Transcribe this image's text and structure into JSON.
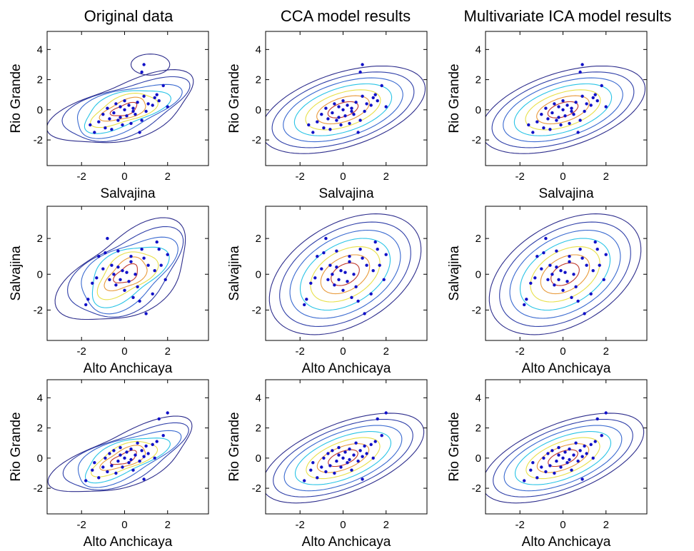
{
  "column_titles": [
    "Original data",
    "CCA model results",
    "Multivariate ICA model results"
  ],
  "contour_colors": [
    "#2d2d8c",
    "#2f3fa8",
    "#3a6ad0",
    "#29c4e6",
    "#e8e04a",
    "#e89a3a",
    "#c0392b"
  ],
  "point_color": "#1010c8",
  "chart_data": [
    {
      "type": "contour-scatter",
      "title": "Original data",
      "xlabel": "Salvajina",
      "ylabel": "Rio Grande",
      "xlim": [
        -3.6,
        3.9
      ],
      "ylim": [
        -3.7,
        5.2
      ],
      "xticks": [
        -2,
        0,
        2
      ],
      "yticks": [
        -2,
        0,
        2,
        4
      ],
      "points": "A"
    },
    {
      "type": "contour-scatter",
      "title": "CCA model results",
      "xlabel": "Salvajina",
      "ylabel": "Rio Grande",
      "xlim": [
        -3.6,
        3.9
      ],
      "ylim": [
        -3.7,
        5.2
      ],
      "xticks": [
        -2,
        0,
        2
      ],
      "yticks": [
        -2,
        0,
        2,
        4
      ],
      "points": "A"
    },
    {
      "type": "contour-scatter",
      "title": "Multivariate ICA model results",
      "xlabel": "Salvajina",
      "ylabel": "Rio Grande",
      "xlim": [
        -3.6,
        3.9
      ],
      "ylim": [
        -3.7,
        5.2
      ],
      "xticks": [
        -2,
        0,
        2
      ],
      "yticks": [
        -2,
        0,
        2,
        4
      ],
      "points": "A"
    },
    {
      "type": "contour-scatter",
      "title": "",
      "xlabel": "Alto Anchicaya",
      "ylabel": "Salvajina",
      "xlim": [
        -3.6,
        3.9
      ],
      "ylim": [
        -3.7,
        3.8
      ],
      "xticks": [
        -2,
        0,
        2
      ],
      "yticks": [
        -2,
        0,
        2
      ],
      "points": "B"
    },
    {
      "type": "contour-scatter",
      "title": "",
      "xlabel": "Alto Anchicaya",
      "ylabel": "Salvajina",
      "xlim": [
        -3.6,
        3.9
      ],
      "ylim": [
        -3.7,
        3.8
      ],
      "xticks": [
        -2,
        0,
        2
      ],
      "yticks": [
        -2,
        0,
        2
      ],
      "points": "B"
    },
    {
      "type": "contour-scatter",
      "title": "",
      "xlabel": "Alto Anchicaya",
      "ylabel": "Salvajina",
      "xlim": [
        -3.6,
        3.9
      ],
      "ylim": [
        -3.7,
        3.8
      ],
      "xticks": [
        -2,
        0,
        2
      ],
      "yticks": [
        -2,
        0,
        2
      ],
      "points": "B"
    },
    {
      "type": "contour-scatter",
      "title": "",
      "xlabel": "Alto Anchicaya",
      "ylabel": "Rio Grande",
      "xlim": [
        -3.6,
        3.9
      ],
      "ylim": [
        -3.7,
        5.2
      ],
      "xticks": [
        -2,
        0,
        2
      ],
      "yticks": [
        -2,
        0,
        2,
        4
      ],
      "points": "C"
    },
    {
      "type": "contour-scatter",
      "title": "",
      "xlabel": "Alto Anchicaya",
      "ylabel": "Rio Grande",
      "xlim": [
        -3.6,
        3.9
      ],
      "ylim": [
        -3.7,
        5.2
      ],
      "xticks": [
        -2,
        0,
        2
      ],
      "yticks": [
        -2,
        0,
        2,
        4
      ],
      "points": "C"
    },
    {
      "type": "contour-scatter",
      "title": "",
      "xlabel": "Alto Anchicaya",
      "ylabel": "Rio Grande",
      "xlim": [
        -3.6,
        3.9
      ],
      "ylim": [
        -3.7,
        5.2
      ],
      "xticks": [
        -2,
        0,
        2
      ],
      "yticks": [
        -2,
        0,
        2,
        4
      ],
      "points": "C"
    }
  ],
  "point_sets": {
    "A": [
      [
        -1.6,
        -1.0
      ],
      [
        -1.4,
        -1.5
      ],
      [
        -1.2,
        -0.8
      ],
      [
        -1.0,
        -0.3
      ],
      [
        -0.9,
        -1.2
      ],
      [
        -0.8,
        0.1
      ],
      [
        -0.7,
        -0.6
      ],
      [
        -0.6,
        -1.3
      ],
      [
        -0.5,
        -0.2
      ],
      [
        -0.4,
        0.4
      ],
      [
        -0.3,
        -0.7
      ],
      [
        -0.2,
        0.2
      ],
      [
        -0.1,
        -1.0
      ],
      [
        0.0,
        0.0
      ],
      [
        0.0,
        0.6
      ],
      [
        0.1,
        -0.4
      ],
      [
        0.2,
        0.3
      ],
      [
        0.3,
        -0.9
      ],
      [
        0.4,
        0.1
      ],
      [
        0.5,
        -0.3
      ],
      [
        0.6,
        0.5
      ],
      [
        0.7,
        -1.5
      ],
      [
        0.8,
        -0.7
      ],
      [
        0.9,
        0.9
      ],
      [
        1.0,
        -0.1
      ],
      [
        1.1,
        0.4
      ],
      [
        1.3,
        0.3
      ],
      [
        1.4,
        0.8
      ],
      [
        1.5,
        1.0
      ],
      [
        1.6,
        0.6
      ],
      [
        1.8,
        1.6
      ],
      [
        2.0,
        0.2
      ],
      [
        0.8,
        2.5
      ],
      [
        0.9,
        3.0
      ],
      [
        -0.2,
        -0.5
      ],
      [
        0.4,
        -0.1
      ]
    ],
    "B": [
      [
        -1.8,
        -1.7
      ],
      [
        -1.7,
        -1.4
      ],
      [
        -1.5,
        -0.5
      ],
      [
        -1.3,
        -0.2
      ],
      [
        -1.2,
        1.0
      ],
      [
        -1.0,
        0.3
      ],
      [
        -0.9,
        1.2
      ],
      [
        -0.8,
        2.0
      ],
      [
        -0.7,
        -0.3
      ],
      [
        -0.6,
        0.5
      ],
      [
        -0.5,
        0.0
      ],
      [
        -0.4,
        -0.6
      ],
      [
        -0.3,
        0.4
      ],
      [
        -0.2,
        -0.3
      ],
      [
        -0.1,
        0.2
      ],
      [
        0.0,
        -0.9
      ],
      [
        0.1,
        0.1
      ],
      [
        0.2,
        -0.4
      ],
      [
        0.3,
        0.7
      ],
      [
        0.4,
        -1.3
      ],
      [
        0.5,
        0.0
      ],
      [
        0.6,
        -0.7
      ],
      [
        0.7,
        -1.5
      ],
      [
        0.8,
        1.4
      ],
      [
        0.9,
        0.9
      ],
      [
        1.0,
        -2.2
      ],
      [
        1.1,
        0.5
      ],
      [
        1.3,
        -1.1
      ],
      [
        1.4,
        0.2
      ],
      [
        1.5,
        1.8
      ],
      [
        1.7,
        0.5
      ],
      [
        1.9,
        -0.3
      ],
      [
        2.0,
        1.1
      ],
      [
        1.6,
        1.4
      ],
      [
        0.3,
        1.0
      ],
      [
        -0.3,
        1.3
      ]
    ],
    "C": [
      [
        -1.8,
        -1.5
      ],
      [
        -1.5,
        -0.8
      ],
      [
        -1.4,
        -0.3
      ],
      [
        -1.2,
        -1.3
      ],
      [
        -1.0,
        -0.6
      ],
      [
        -0.9,
        0.0
      ],
      [
        -0.8,
        -0.9
      ],
      [
        -0.7,
        0.3
      ],
      [
        -0.6,
        -0.5
      ],
      [
        -0.5,
        0.5
      ],
      [
        -0.4,
        -1.0
      ],
      [
        -0.3,
        -0.2
      ],
      [
        -0.2,
        0.2
      ],
      [
        -0.1,
        -0.6
      ],
      [
        0.0,
        0.0
      ],
      [
        0.1,
        0.4
      ],
      [
        0.2,
        -0.3
      ],
      [
        0.3,
        0.6
      ],
      [
        0.4,
        -0.8
      ],
      [
        0.5,
        0.2
      ],
      [
        0.6,
        1.0
      ],
      [
        0.7,
        -0.2
      ],
      [
        0.8,
        0.5
      ],
      [
        0.9,
        -1.4
      ],
      [
        1.0,
        0.8
      ],
      [
        1.1,
        0.3
      ],
      [
        1.3,
        0.9
      ],
      [
        1.4,
        0.0
      ],
      [
        1.5,
        1.1
      ],
      [
        1.6,
        2.6
      ],
      [
        1.8,
        1.5
      ],
      [
        2.0,
        3.0
      ],
      [
        0.9,
        0.1
      ],
      [
        0.3,
        -0.1
      ],
      [
        -0.2,
        0.7
      ]
    ]
  }
}
